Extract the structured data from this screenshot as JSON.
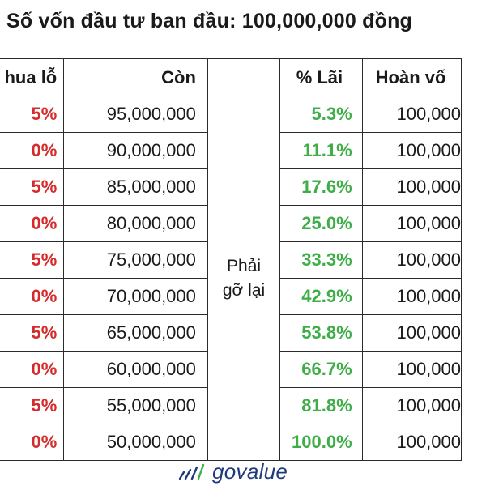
{
  "title": "Số vốn đầu tư ban đầu: 100,000,000 đồng",
  "headers": {
    "loss": "hua lỗ",
    "remaining": "Còn",
    "need": "",
    "pct": "% Lãi",
    "back": "Hoàn vố"
  },
  "need_text": "Phải gỡ lại",
  "rows": [
    {
      "loss": "5%",
      "remaining": "95,000,000",
      "pct": "5.3%",
      "back": "100,000"
    },
    {
      "loss": "0%",
      "remaining": "90,000,000",
      "pct": "11.1%",
      "back": "100,000"
    },
    {
      "loss": "5%",
      "remaining": "85,000,000",
      "pct": "17.6%",
      "back": "100,000"
    },
    {
      "loss": "0%",
      "remaining": "80,000,000",
      "pct": "25.0%",
      "back": "100,000"
    },
    {
      "loss": "5%",
      "remaining": "75,000,000",
      "pct": "33.3%",
      "back": "100,000"
    },
    {
      "loss": "0%",
      "remaining": "70,000,000",
      "pct": "42.9%",
      "back": "100,000"
    },
    {
      "loss": "5%",
      "remaining": "65,000,000",
      "pct": "53.8%",
      "back": "100,000"
    },
    {
      "loss": "0%",
      "remaining": "60,000,000",
      "pct": "66.7%",
      "back": "100,000"
    },
    {
      "loss": "5%",
      "remaining": "55,000,000",
      "pct": "81.8%",
      "back": "100,000"
    },
    {
      "loss": "0%",
      "remaining": "50,000,000",
      "pct": "100.0%",
      "back": "100,000"
    }
  ],
  "logo": {
    "text": "govalue",
    "icon": "chart-bars-icon"
  },
  "colors": {
    "loss": "#d62b2b",
    "gain": "#3fae49",
    "logo": "#1e3a7a"
  }
}
